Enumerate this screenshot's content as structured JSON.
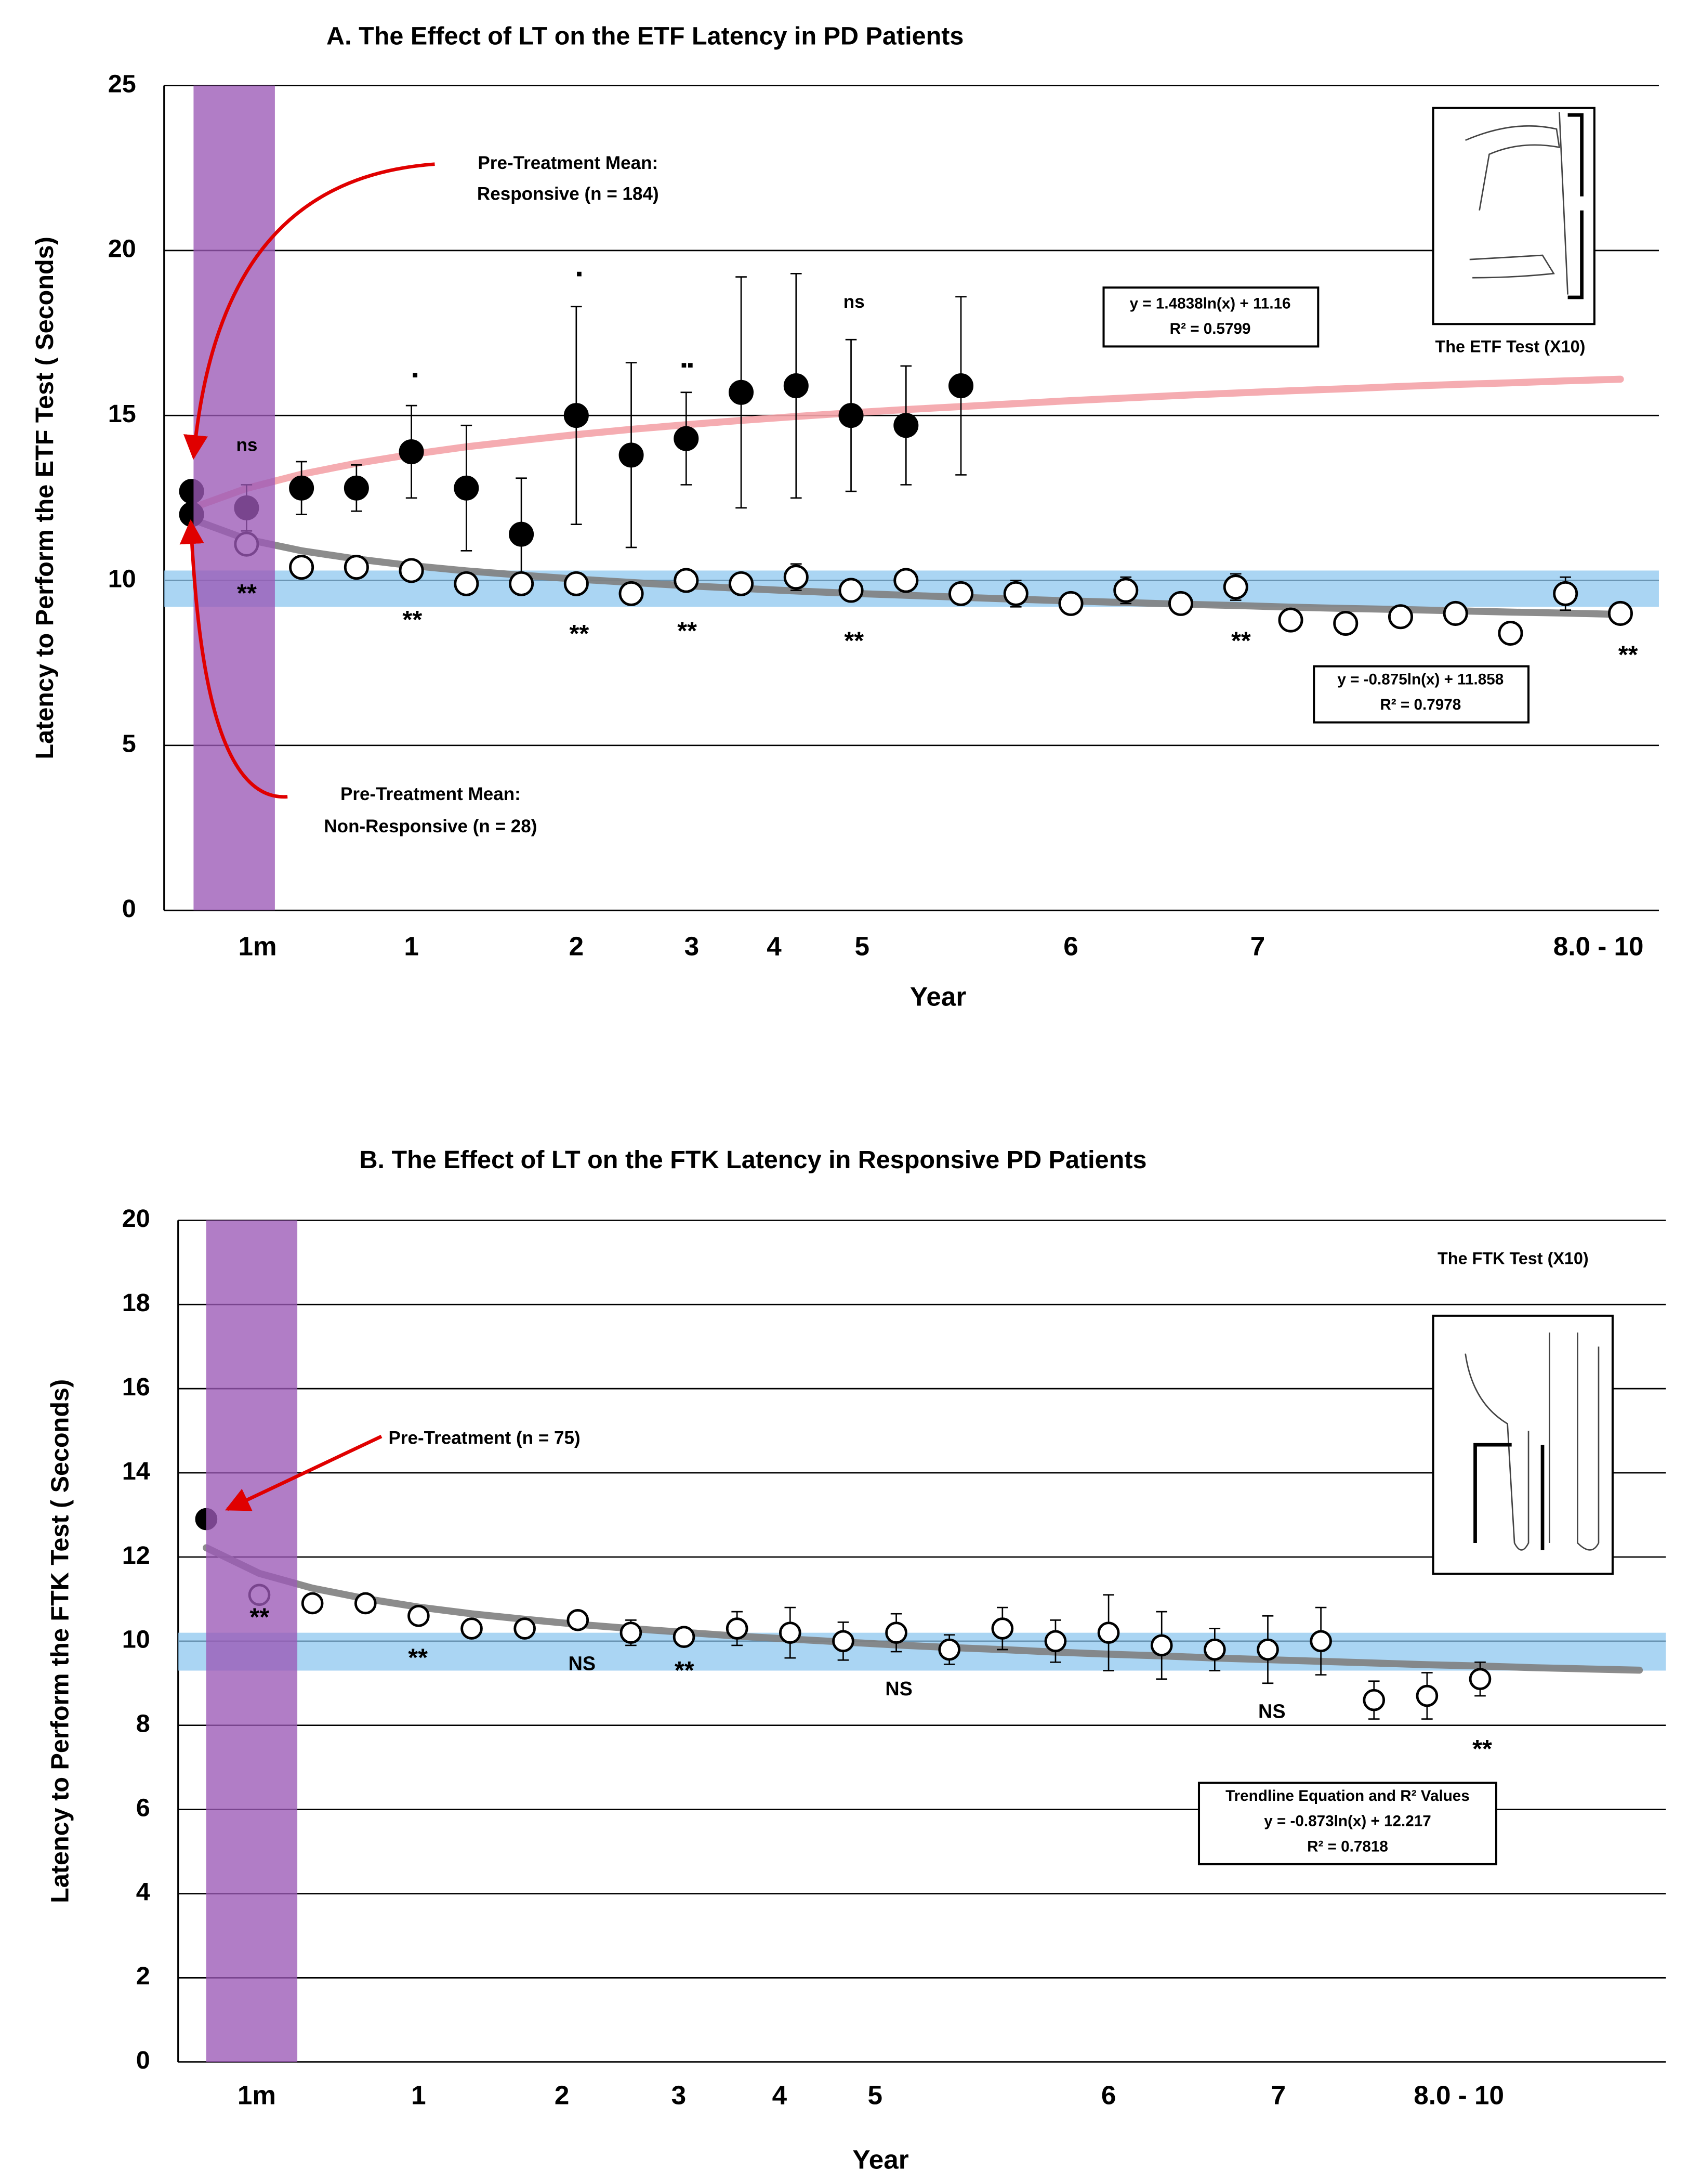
{
  "chart_data": [
    {
      "type": "scatter",
      "title": "A. The Effect of LT on the ETF Latency in PD Patients",
      "ylabel": "Latency to Perform the ETF Test ( Seconds)",
      "xlabel": "Year",
      "xlim": [
        -0.5,
        26.7
      ],
      "ylim": [
        0,
        25
      ],
      "yticks": [
        0,
        5,
        10,
        15,
        20,
        25
      ],
      "grid": true,
      "xticks": [
        {
          "value": 1.2,
          "label": "1m"
        },
        {
          "value": 4,
          "label": "1"
        },
        {
          "value": 7,
          "label": "2"
        },
        {
          "value": 9.1,
          "label": "3"
        },
        {
          "value": 10.6,
          "label": "4"
        },
        {
          "value": 12.2,
          "label": "5"
        },
        {
          "value": 16,
          "label": "6"
        },
        {
          "value": 19.4,
          "label": "7"
        },
        {
          "value": 25.6,
          "label": "8.0 - 10"
        }
      ],
      "series": [
        {
          "style": "line",
          "color": "#f4a3a8",
          "x": [
            0,
            1,
            2,
            3,
            4,
            5,
            6,
            7,
            8,
            9,
            10,
            11,
            12,
            13,
            14,
            15,
            16,
            17,
            18,
            19,
            20,
            21,
            22,
            23,
            24,
            25,
            26
          ],
          "values": [
            12.19,
            12.79,
            13.22,
            13.55,
            13.82,
            14.05,
            14.24,
            14.42,
            14.58,
            14.72,
            14.85,
            14.97,
            15.08,
            15.18,
            15.27,
            15.36,
            15.45,
            15.53,
            15.61,
            15.68,
            15.75,
            15.81,
            15.88,
            15.94,
            15.99,
            16.05,
            16.1
          ]
        },
        {
          "style": "line",
          "color": "#7f7f7f",
          "x": [
            0,
            1,
            2,
            3,
            4,
            5,
            6,
            7,
            8,
            9,
            10,
            11,
            12,
            13,
            14,
            15,
            16,
            17,
            18,
            19,
            20,
            21,
            22,
            23,
            24,
            25,
            26
          ],
          "values": [
            11.86,
            11.25,
            10.9,
            10.65,
            10.45,
            10.29,
            10.16,
            10.04,
            9.94,
            9.84,
            9.76,
            9.68,
            9.61,
            9.55,
            9.49,
            9.43,
            9.38,
            9.33,
            9.28,
            9.24,
            9.19,
            9.15,
            9.12,
            9.08,
            9.04,
            9.01,
            8.97
          ]
        },
        {
          "style": "markers",
          "color": "#000000",
          "x": [
            0,
            0
          ],
          "values": [
            12.7,
            12.0
          ]
        },
        {
          "style": "markers",
          "color": "#000000",
          "x": [
            1,
            2,
            3,
            4,
            5,
            6,
            7,
            8,
            9,
            10,
            11,
            12,
            13,
            14
          ],
          "values": [
            12.2,
            12.8,
            12.8,
            13.9,
            12.8,
            11.4,
            15.0,
            13.8,
            14.3,
            15.7,
            15.9,
            15.0,
            14.7,
            15.9
          ],
          "errors": [
            0.7,
            0.8,
            0.7,
            1.4,
            1.9,
            1.7,
            3.3,
            2.8,
            1.4,
            3.5,
            3.4,
            2.3,
            1.8,
            2.7
          ]
        },
        {
          "style": "markers",
          "color": "#ffffff",
          "x": [
            1,
            2,
            3,
            4,
            5,
            6,
            7,
            8,
            9,
            10,
            11,
            12,
            13,
            14,
            15,
            16,
            17,
            18,
            19,
            20,
            21,
            22,
            23,
            24,
            25,
            26
          ],
          "values": [
            11.1,
            10.4,
            10.4,
            10.3,
            9.9,
            9.9,
            9.9,
            9.6,
            10.0,
            9.9,
            10.1,
            9.7,
            10.0,
            9.6,
            9.6,
            9.3,
            9.7,
            9.3,
            9.8,
            8.8,
            8.7,
            8.9,
            9.0,
            8.4,
            9.6,
            9.0
          ],
          "errors": [
            0.3,
            null,
            null,
            null,
            null,
            null,
            null,
            null,
            null,
            null,
            0.4,
            null,
            0.3,
            null,
            0.4,
            null,
            0.4,
            null,
            0.4,
            null,
            null,
            null,
            null,
            null,
            0.5,
            null
          ]
        }
      ],
      "annotations": [
        "Pre-Treatment Mean:",
        "Responsive (n = 184)",
        "Pre-Treatment Mean:",
        "Non-Responsive (n = 28)",
        "ns",
        "▪",
        "▪",
        "▪▪",
        "ns",
        "**",
        "**",
        "**",
        "**",
        "**",
        "**",
        "**",
        "y = 1.4838ln(x) + 11.16",
        "R² = 0.5799",
        "y = -0.875ln(x) + 11.858",
        "R² = 0.7978",
        "The ETF  Test (X10)"
      ]
    },
    {
      "type": "scatter",
      "title": "B. The Effect of LT on the FTK Latency in Responsive PD Patients",
      "ylabel": "Latency to Perform the FTK Test ( Seconds)",
      "xlabel": "Year",
      "xlim": [
        -0.53,
        27.5
      ],
      "ylim": [
        0,
        20
      ],
      "yticks": [
        0,
        2,
        4,
        6,
        8,
        10,
        12,
        14,
        16,
        18,
        20
      ],
      "grid": true,
      "xticks": [
        {
          "value": 0.95,
          "label": "1m"
        },
        {
          "value": 4,
          "label": "1"
        },
        {
          "value": 6.7,
          "label": "2"
        },
        {
          "value": 8.9,
          "label": "3"
        },
        {
          "value": 10.8,
          "label": "4"
        },
        {
          "value": 12.6,
          "label": "5"
        },
        {
          "value": 17,
          "label": "6"
        },
        {
          "value": 20.2,
          "label": "7"
        },
        {
          "value": 23.6,
          "label": "8.0 - 10"
        }
      ],
      "series": [
        {
          "style": "line",
          "color": "#7f7f7f",
          "x": [
            0,
            1,
            2,
            3,
            4,
            5,
            6,
            7,
            8,
            9,
            10,
            11,
            12,
            13,
            14,
            15,
            16,
            17,
            18,
            19,
            20,
            21,
            22,
            23,
            24,
            25,
            26,
            27
          ],
          "values": [
            12.22,
            11.61,
            11.26,
            11.01,
            10.81,
            10.65,
            10.52,
            10.4,
            10.3,
            10.21,
            10.12,
            10.05,
            9.98,
            9.91,
            9.85,
            9.8,
            9.74,
            9.69,
            9.65,
            9.6,
            9.56,
            9.52,
            9.48,
            9.44,
            9.41,
            9.37,
            9.34,
            9.31
          ]
        },
        {
          "style": "markers",
          "color": "#000000",
          "x": [
            0
          ],
          "values": [
            12.9
          ]
        },
        {
          "style": "markers",
          "color": "#ffffff",
          "x": [
            1,
            2,
            3,
            4,
            5,
            6,
            7,
            8,
            9,
            10,
            11,
            12,
            13,
            14,
            15,
            16,
            17,
            18,
            19,
            20,
            21,
            22,
            23,
            24
          ],
          "values": [
            11.1,
            10.9,
            10.9,
            10.6,
            10.3,
            10.3,
            10.5,
            10.2,
            10.1,
            10.3,
            10.2,
            10.0,
            10.2,
            9.8,
            10.3,
            10.0,
            10.2,
            9.9,
            9.8,
            9.8,
            10.0,
            8.6,
            8.7,
            9.1
          ],
          "errors": [
            null,
            null,
            null,
            null,
            null,
            null,
            0.15,
            0.3,
            0.2,
            0.4,
            0.6,
            0.45,
            0.45,
            0.35,
            0.5,
            0.5,
            0.9,
            0.8,
            0.5,
            0.8,
            0.8,
            0.45,
            0.55,
            0.4
          ]
        }
      ],
      "annotations": [
        "Pre-Treatment (n = 75)",
        "**",
        "**",
        "NS",
        "**",
        "NS",
        "NS",
        "**",
        "Trendline Equation and R² Values",
        "y = -0.873ln(x) + 12.217",
        "R² = 0.7818",
        "The FTK  Test (X10)"
      ]
    }
  ]
}
